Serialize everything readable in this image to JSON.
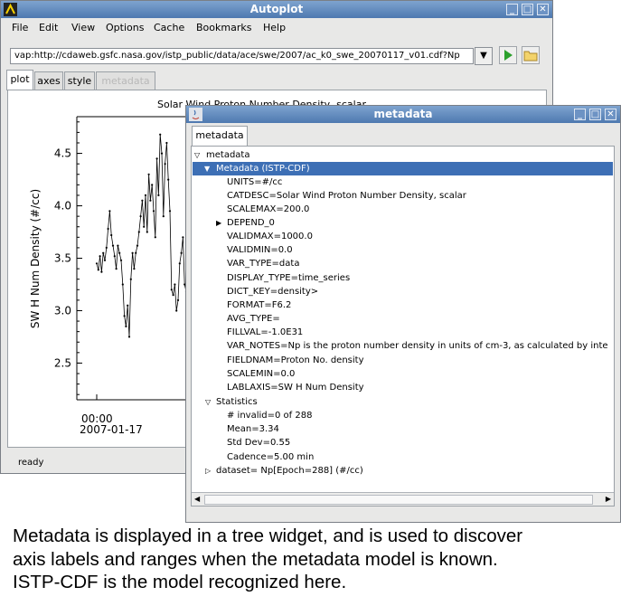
{
  "main_window": {
    "title": "Autoplot",
    "menus": [
      "File",
      "Edit",
      "View",
      "Options",
      "Cache",
      "Bookmarks",
      "Help"
    ],
    "url": "vap:http://cdaweb.gsfc.nasa.gov/istp_public/data/ace/swe/2007/ac_k0_swe_20070117_v01.cdf?Np",
    "tabs": [
      "plot",
      "axes",
      "style",
      "metadata"
    ],
    "status": "ready"
  },
  "plot": {
    "title": "Solar Wind Proton Number Density, scalar",
    "ylabel": "SW H Num Density (#/cc)",
    "yticks": [
      "4.5",
      "4.0",
      "3.5",
      "3.0",
      "2.5"
    ],
    "xtick_time": "00:00",
    "xtick_date": "2007-01-17"
  },
  "chart_data": {
    "type": "line",
    "ylabel": "SW H Num Density (#/cc)",
    "ylim": [
      2.15,
      4.85
    ],
    "values": [
      3.45,
      3.39,
      3.52,
      3.37,
      3.55,
      3.48,
      3.6,
      3.78,
      3.95,
      3.72,
      3.62,
      3.52,
      3.4,
      3.62,
      3.55,
      3.48,
      3.25,
      2.95,
      2.85,
      3.05,
      2.75,
      3.3,
      3.55,
      3.4,
      3.55,
      3.62,
      3.75,
      3.9,
      4.05,
      3.8,
      4.1,
      3.75,
      4.3,
      4.05,
      4.2,
      3.95,
      3.7,
      4.45,
      4.1,
      4.68,
      4.5,
      3.9,
      4.4,
      4.6,
      4.25,
      3.95,
      3.2,
      3.15,
      3.25,
      3.0,
      3.1,
      3.45,
      3.55,
      3.7,
      3.25,
      3.18,
      3.3
    ]
  },
  "metadata_window": {
    "title": "metadata",
    "tab": "metadata",
    "root": "metadata",
    "group": "Metadata (ISTP-CDF)",
    "items": [
      "UNITS=#/cc",
      "CATDESC=Solar Wind Proton Number Density, scalar",
      "SCALEMAX=200.0",
      "DEPEND_0",
      "VALIDMAX=1000.0",
      "VALIDMIN=0.0",
      "VAR_TYPE=data",
      "DISPLAY_TYPE=time_series",
      "DICT_KEY=density>",
      "FORMAT=F6.2",
      "AVG_TYPE=",
      "FILLVAL=-1.0E31",
      "VAR_NOTES=Np is the proton number density in units of cm-3, as calculated by inte",
      "FIELDNAM=Proton No. density",
      "SCALEMIN=0.0",
      "LABLAXIS=SW H Num Density"
    ],
    "statistics_label": "Statistics",
    "statistics": [
      "# invalid=0 of 288",
      "Mean=3.34",
      "Std Dev=0.55",
      "Cadence=5.00 min"
    ],
    "dataset": "dataset= Np[Epoch=288] (#/cc)"
  },
  "caption": [
    "Metadata is displayed in a tree widget, and is used to discover",
    "axis labels and ranges when the metadata model is known.",
    "ISTP-CDF is the model recognized here."
  ],
  "colors": {
    "titlebar": "#5b86bd",
    "selection": "#3d6fb5",
    "accent_green": "#2ca02c"
  }
}
